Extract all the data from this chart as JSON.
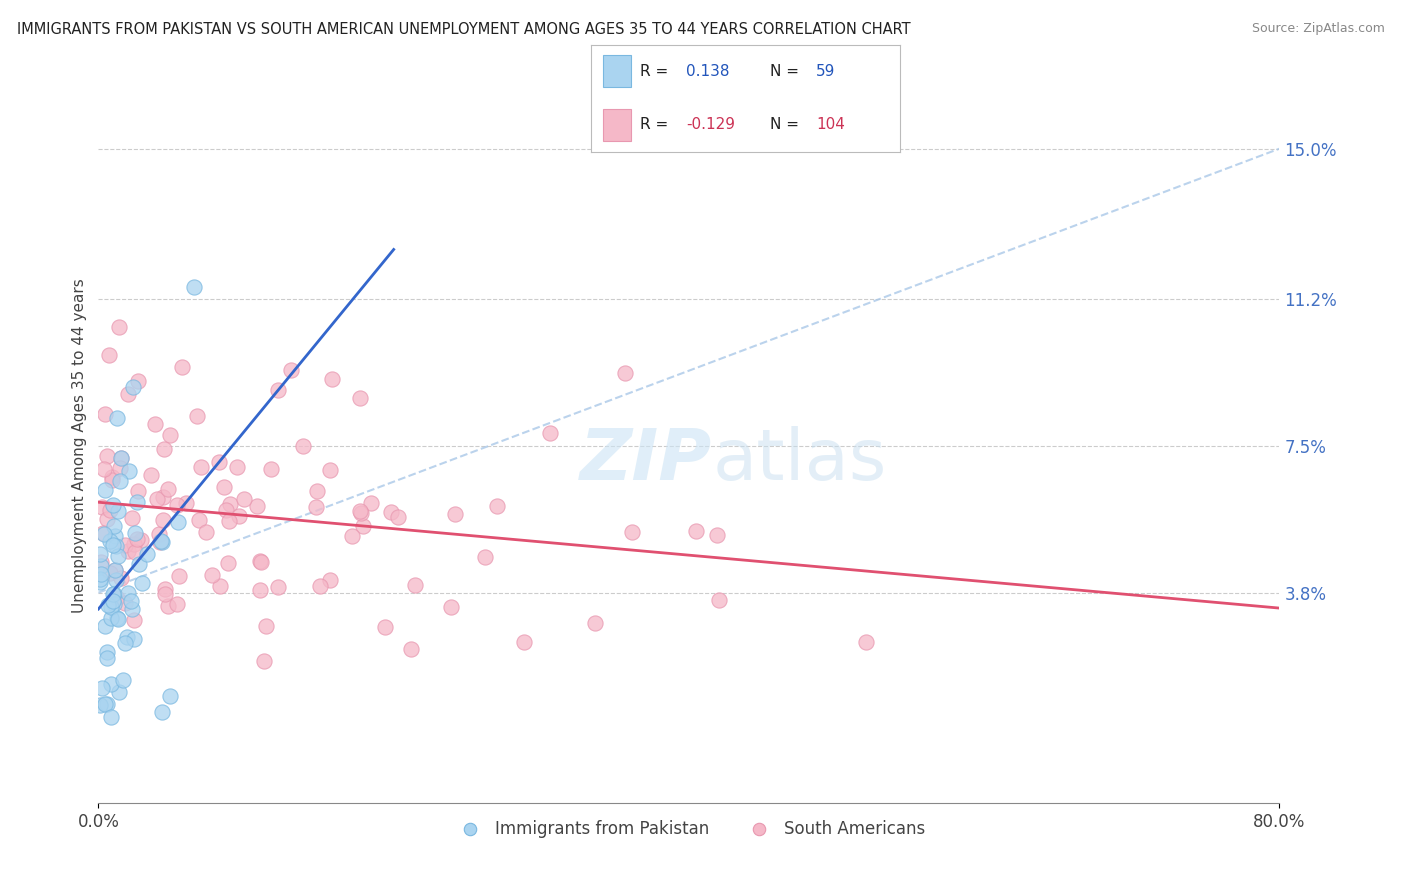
{
  "title": "IMMIGRANTS FROM PAKISTAN VS SOUTH AMERICAN UNEMPLOYMENT AMONG AGES 35 TO 44 YEARS CORRELATION CHART",
  "source": "Source: ZipAtlas.com",
  "ylabel": "Unemployment Among Ages 35 to 44 years",
  "series1_label": "Immigrants from Pakistan",
  "series2_label": "South Americans",
  "series1_R": 0.138,
  "series1_N": 59,
  "series2_R": -0.129,
  "series2_N": 104,
  "series1_color": "#aad4f0",
  "series2_color": "#f5b8c8",
  "series1_edge": "#7ab8e0",
  "series2_edge": "#e898b0",
  "trend1_color": "#3366cc",
  "trend2_color": "#e05070",
  "trend_dashed_color": "#aac8e8",
  "right_yticks": [
    0.038,
    0.075,
    0.112,
    0.15
  ],
  "right_yticklabels": [
    "3.8%",
    "7.5%",
    "11.2%",
    "15.0%"
  ],
  "xlim": [
    0.0,
    0.8
  ],
  "ylim": [
    -0.015,
    0.165
  ],
  "background_color": "#ffffff"
}
